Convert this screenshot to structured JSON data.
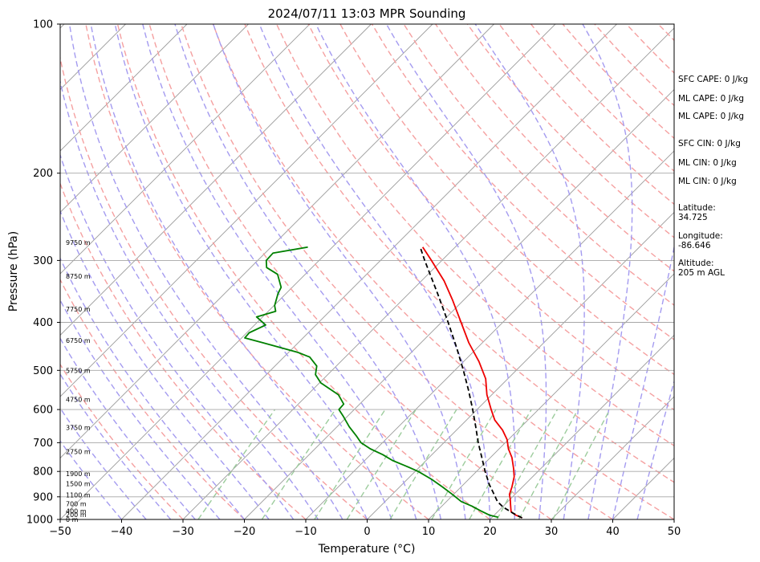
{
  "chart_data": {
    "type": "line",
    "title": "2024/07/11 13:03 MPR Sounding",
    "xlabel": "Temperature (°C)",
    "ylabel": "Pressure (hPa)",
    "xlim": [
      -50,
      50
    ],
    "ylim": [
      1000,
      100
    ],
    "y_scale": "log",
    "skew": "45 degrees",
    "x_ticks": [
      "−50",
      "−40",
      "−30",
      "−20",
      "−10",
      "0",
      "10",
      "20",
      "30",
      "40",
      "50"
    ],
    "y_ticks": [
      {
        "p": 1000,
        "label": "1000"
      },
      {
        "p": 900,
        "label": "900"
      },
      {
        "p": 800,
        "label": "800"
      },
      {
        "p": 700,
        "label": "700"
      },
      {
        "p": 600,
        "label": "600"
      },
      {
        "p": 500,
        "label": "500"
      },
      {
        "p": 400,
        "label": "400"
      },
      {
        "p": 300,
        "label": "300"
      },
      {
        "p": 200,
        "label": "200"
      },
      {
        "p": 100,
        "label": "100"
      }
    ],
    "grid": "horizontal isobars",
    "series": [
      {
        "kind": "temperature",
        "color": "#ee0000",
        "points": [
          {
            "p": 993,
            "t": 25.0
          },
          {
            "p": 980,
            "t": 23.5
          },
          {
            "p": 965,
            "t": 22.2
          },
          {
            "p": 950,
            "t": 21.6
          },
          {
            "p": 930,
            "t": 20.8
          },
          {
            "p": 910,
            "t": 20.0
          },
          {
            "p": 890,
            "t": 19.1
          },
          {
            "p": 860,
            "t": 18.3
          },
          {
            "p": 820,
            "t": 17.0
          },
          {
            "p": 790,
            "t": 15.6
          },
          {
            "p": 750,
            "t": 13.5
          },
          {
            "p": 720,
            "t": 11.5
          },
          {
            "p": 690,
            "t": 9.8
          },
          {
            "p": 660,
            "t": 7.5
          },
          {
            "p": 630,
            "t": 4.6
          },
          {
            "p": 600,
            "t": 2.3
          },
          {
            "p": 560,
            "t": -0.8
          },
          {
            "p": 520,
            "t": -3.6
          },
          {
            "p": 480,
            "t": -7.5
          },
          {
            "p": 440,
            "t": -12.2
          },
          {
            "p": 400,
            "t": -16.8
          },
          {
            "p": 360,
            "t": -21.9
          },
          {
            "p": 330,
            "t": -26.3
          },
          {
            "p": 300,
            "t": -31.7
          },
          {
            "p": 282,
            "t": -35.3
          }
        ]
      },
      {
        "kind": "dewpoint",
        "color": "#008000",
        "points": [
          {
            "p": 990,
            "t": 21.0
          },
          {
            "p": 980,
            "t": 19.2
          },
          {
            "p": 960,
            "t": 17.0
          },
          {
            "p": 940,
            "t": 14.9
          },
          {
            "p": 920,
            "t": 12.4
          },
          {
            "p": 890,
            "t": 9.8
          },
          {
            "p": 860,
            "t": 7.0
          },
          {
            "p": 830,
            "t": 4.0
          },
          {
            "p": 800,
            "t": 0.5
          },
          {
            "p": 780,
            "t": -2.4
          },
          {
            "p": 760,
            "t": -5.5
          },
          {
            "p": 740,
            "t": -8.0
          },
          {
            "p": 720,
            "t": -11.0
          },
          {
            "p": 700,
            "t": -13.5
          },
          {
            "p": 680,
            "t": -15.2
          },
          {
            "p": 650,
            "t": -18.0
          },
          {
            "p": 620,
            "t": -20.6
          },
          {
            "p": 600,
            "t": -22.5
          },
          {
            "p": 585,
            "t": -22.6
          },
          {
            "p": 560,
            "t": -25.0
          },
          {
            "p": 530,
            "t": -29.8
          },
          {
            "p": 510,
            "t": -32.0
          },
          {
            "p": 490,
            "t": -33.2
          },
          {
            "p": 470,
            "t": -35.8
          },
          {
            "p": 460,
            "t": -38.5
          },
          {
            "p": 440,
            "t": -45.7
          },
          {
            "p": 430,
            "t": -49.5
          },
          {
            "p": 420,
            "t": -49.6
          },
          {
            "p": 405,
            "t": -48.2
          },
          {
            "p": 390,
            "t": -51.0
          },
          {
            "p": 380,
            "t": -48.8
          },
          {
            "p": 370,
            "t": -49.9
          },
          {
            "p": 350,
            "t": -51.3
          },
          {
            "p": 340,
            "t": -51.8
          },
          {
            "p": 320,
            "t": -54.5
          },
          {
            "p": 310,
            "t": -57.4
          },
          {
            "p": 300,
            "t": -58.6
          },
          {
            "p": 290,
            "t": -58.7
          },
          {
            "p": 282,
            "t": -54.0
          }
        ]
      },
      {
        "kind": "parcel",
        "color": "#000000",
        "dashed": true,
        "points": [
          {
            "p": 993,
            "t": 25.0
          },
          {
            "p": 970,
            "t": 22.6
          },
          {
            "p": 945,
            "t": 20.2
          },
          {
            "p": 920,
            "t": 18.3
          },
          {
            "p": 890,
            "t": 16.6
          },
          {
            "p": 850,
            "t": 14.2
          },
          {
            "p": 800,
            "t": 11.4
          },
          {
            "p": 750,
            "t": 8.6
          },
          {
            "p": 700,
            "t": 5.6
          },
          {
            "p": 650,
            "t": 2.6
          },
          {
            "p": 600,
            "t": -0.7
          },
          {
            "p": 550,
            "t": -4.4
          },
          {
            "p": 500,
            "t": -8.6
          },
          {
            "p": 450,
            "t": -13.4
          },
          {
            "p": 400,
            "t": -18.9
          },
          {
            "p": 350,
            "t": -25.3
          },
          {
            "p": 300,
            "t": -32.8
          },
          {
            "p": 282,
            "t": -35.7
          }
        ]
      }
    ],
    "height_labels": [
      {
        "p": 1000,
        "label": "0 m"
      },
      {
        "p": 978,
        "label": "200 m"
      },
      {
        "p": 962,
        "label": "400 m"
      },
      {
        "p": 930,
        "label": "700 m"
      },
      {
        "p": 893,
        "label": "1100 m"
      },
      {
        "p": 847,
        "label": "1500 m"
      },
      {
        "p": 808,
        "label": "1900 m"
      },
      {
        "p": 730,
        "label": "2750 m"
      },
      {
        "p": 652,
        "label": "3750 m"
      },
      {
        "p": 572,
        "label": "4750 m"
      },
      {
        "p": 500,
        "label": "5750 m"
      },
      {
        "p": 435,
        "label": "6750 m"
      },
      {
        "p": 376,
        "label": "7750 m"
      },
      {
        "p": 323,
        "label": "8750 m"
      },
      {
        "p": 276,
        "label": "9750 m"
      }
    ]
  },
  "info_panel": {
    "lines": [
      "SFC CAPE: 0 J/kg",
      "ML CAPE: 0 J/kg",
      "ML CAPE: 0 J/kg",
      "SFC CIN: 0 J/kg",
      "ML CIN: 0 J/kg",
      "ML CIN: 0 J/kg",
      "Latitude:",
      "34.725",
      "Longitude:",
      "-86.646",
      "Altitude:",
      "205 m AGL"
    ]
  },
  "colors": {
    "temperature": "#ee0000",
    "dewpoint": "#008000",
    "parcel": "#000000",
    "dry_adiabats": "#f5a0a0",
    "moist_adiabats": "#a49bf0",
    "mixing_ratio": "#9ccc9c",
    "isotherms": "#9a9a9a",
    "isobars": "#a6a6a6"
  }
}
